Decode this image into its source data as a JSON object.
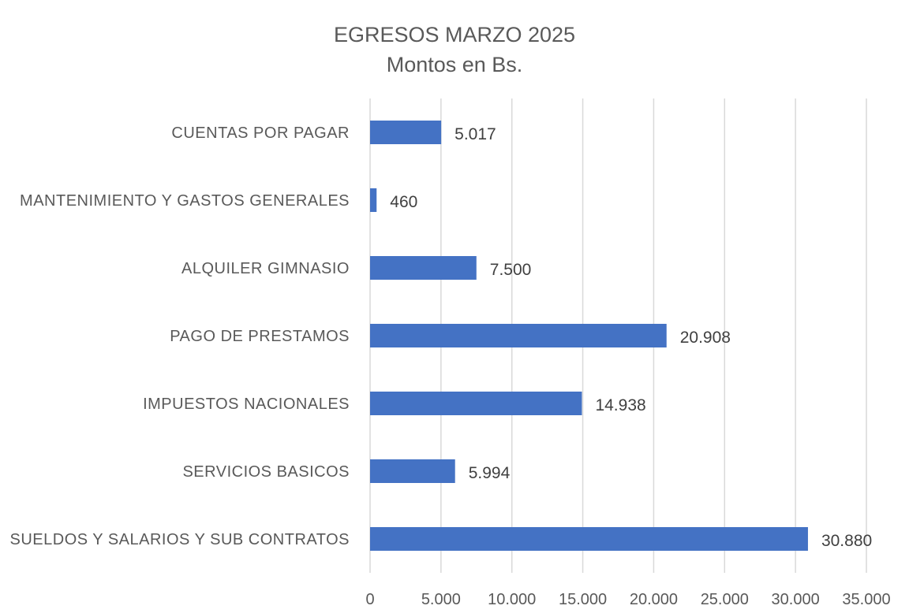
{
  "chart_data": {
    "type": "bar",
    "orientation": "horizontal",
    "title": "EGRESOS MARZO 2025",
    "subtitle": "Montos en Bs.",
    "categories": [
      "CUENTAS POR PAGAR",
      "MANTENIMIENTO Y GASTOS GENERALES",
      "ALQUILER GIMNASIO",
      "PAGO DE PRESTAMOS",
      "IMPUESTOS NACIONALES",
      "SERVICIOS BASICOS",
      "SUELDOS Y SALARIOS Y SUB CONTRATOS"
    ],
    "values": [
      5017,
      460,
      7500,
      20908,
      14938,
      5994,
      30880
    ],
    "data_labels": [
      "5.017",
      "460",
      "7.500",
      "20.908",
      "14.938",
      "5.994",
      "30.880"
    ],
    "xlim": [
      0,
      35000
    ],
    "x_ticks": [
      0,
      5000,
      10000,
      15000,
      20000,
      25000,
      30000,
      35000
    ],
    "x_tick_labels": [
      "0",
      "5.000",
      "10.000",
      "15.000",
      "20.000",
      "25.000",
      "30.000",
      "35.000"
    ],
    "grid": true,
    "legend": "none",
    "bar_color": "#4472C4",
    "grid_color": "#D9D9D9"
  }
}
